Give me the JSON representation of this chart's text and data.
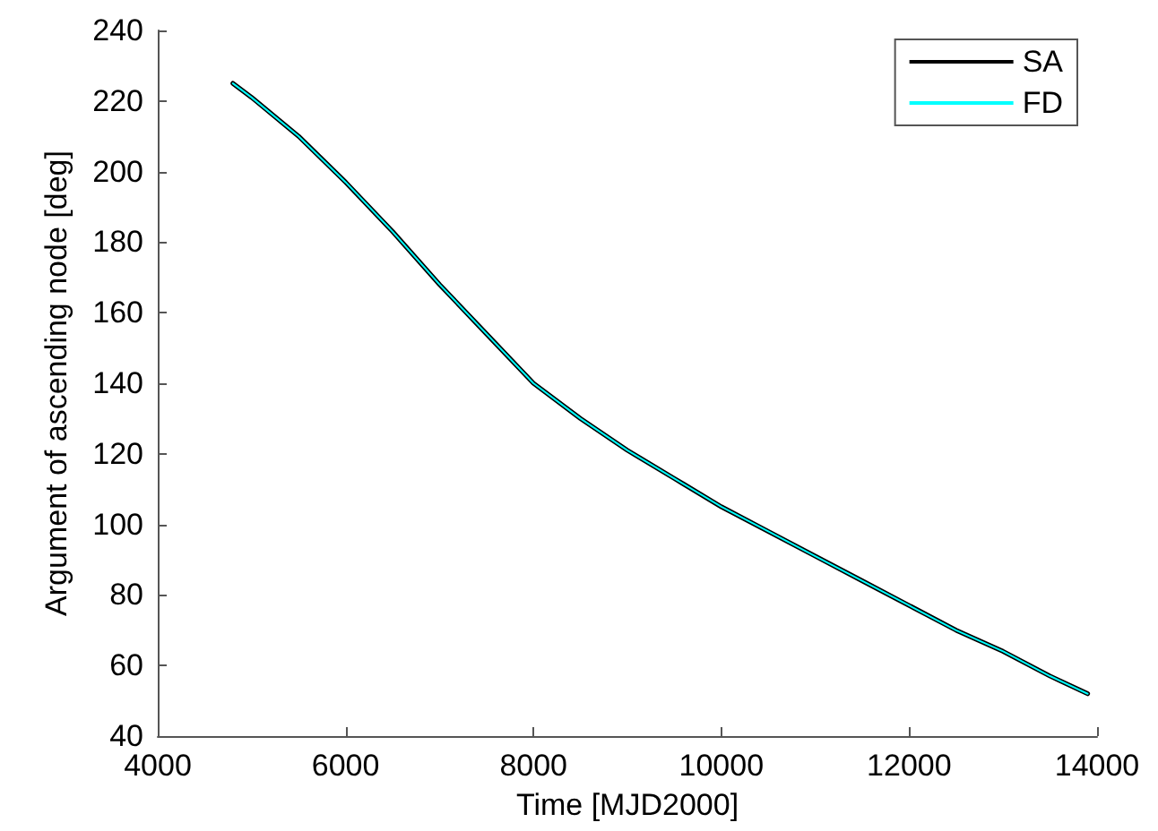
{
  "chart_data": {
    "type": "line",
    "xlabel": "Time [MJD2000]",
    "ylabel": "Argument of ascending node [deg]",
    "x": [
      4800,
      5000,
      5500,
      6000,
      6500,
      7000,
      7500,
      8000,
      8500,
      9000,
      9500,
      10000,
      10500,
      11000,
      11500,
      12000,
      12500,
      13000,
      13500,
      13900
    ],
    "series": [
      {
        "name": "SA",
        "color": "#000000",
        "values": [
          225,
          221,
          210,
          197,
          183,
          168,
          154,
          140,
          130,
          121,
          113,
          105,
          98,
          91,
          84,
          77,
          70,
          64,
          57,
          52
        ]
      },
      {
        "name": "FD",
        "color": "#00ffff",
        "values": [
          225,
          221,
          210,
          197,
          183,
          168,
          154,
          140,
          130,
          121,
          113,
          105,
          98,
          91,
          84,
          77,
          70,
          64,
          57,
          52
        ]
      }
    ],
    "xlim": [
      4000,
      14000
    ],
    "xticks": [
      4000,
      6000,
      8000,
      10000,
      12000,
      14000
    ],
    "ylim": [
      40,
      240
    ],
    "yticks": [
      40,
      60,
      80,
      100,
      120,
      140,
      160,
      180,
      200,
      220,
      240
    ],
    "grid": false,
    "legend": "top right",
    "marker": "none",
    "line_style": "solid"
  }
}
